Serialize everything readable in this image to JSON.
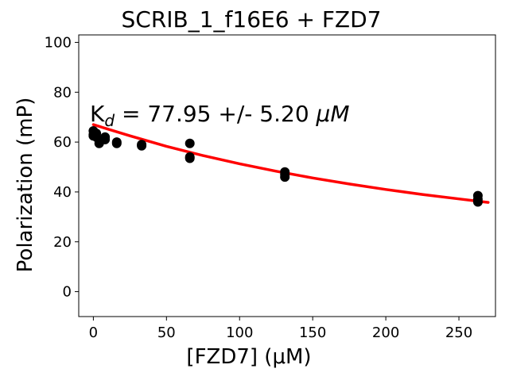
{
  "chart_data": {
    "type": "scatter",
    "title": "SCRIB_1_f16E6 + FZD7",
    "xlabel": "[FZD7] (μM)",
    "ylabel": "Polarization (mP)",
    "xlim": [
      -10,
      275
    ],
    "ylim": [
      -10,
      103
    ],
    "xticks": [
      0,
      50,
      100,
      150,
      200,
      250
    ],
    "yticks": [
      0,
      20,
      40,
      60,
      80,
      100
    ],
    "grid": false,
    "annotation": {
      "base": "K",
      "subscript": "d",
      "rest": " = 77.95 +/- 5.20 ",
      "unit": "μM"
    },
    "series": [
      {
        "kind": "points",
        "color": "#000000",
        "x": [
          0,
          0,
          0,
          2,
          2,
          4,
          4,
          8,
          8,
          16,
          16,
          33,
          33,
          66,
          66,
          66,
          131,
          131,
          131,
          263,
          263,
          263
        ],
        "y": [
          64.5,
          63,
          62.5,
          63.5,
          62,
          60.5,
          59.5,
          62,
          61,
          60,
          59.5,
          59,
          58.5,
          59.5,
          54,
          53.5,
          48,
          47,
          46,
          38.5,
          37,
          36
        ]
      },
      {
        "kind": "fit",
        "color": "#ff0000",
        "x": [
          0,
          25,
          50,
          75,
          100,
          125,
          150,
          175,
          200,
          225,
          250,
          270
        ],
        "y": [
          67,
          62.5,
          58.3,
          54.6,
          51.3,
          48.3,
          45.6,
          43.2,
          41,
          39,
          37.2,
          35.8
        ]
      }
    ]
  }
}
